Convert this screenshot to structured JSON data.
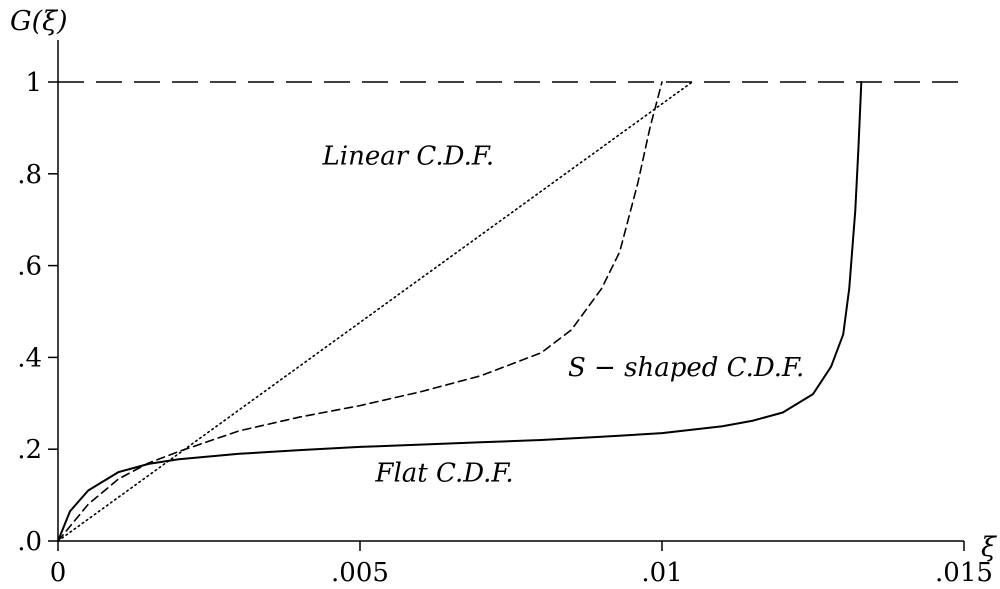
{
  "chart_data": {
    "type": "line",
    "title": "",
    "xlabel": "ξ",
    "ylabel": "G(ξ)",
    "xlim": [
      0,
      0.015
    ],
    "ylim": [
      0,
      1
    ],
    "x_ticks": [
      0,
      0.005,
      0.01,
      0.015
    ],
    "x_tick_labels": [
      "0",
      ".005",
      ".01",
      ".015"
    ],
    "y_ticks": [
      0,
      0.2,
      0.4,
      0.6,
      0.8,
      1
    ],
    "y_tick_labels": [
      ".0",
      ".2",
      ".4",
      ".6",
      ".8",
      "1"
    ],
    "grid": false,
    "legend": "none",
    "reference_line": {
      "y": 1,
      "style": "long-dash"
    },
    "series": [
      {
        "label": "Linear C.D.F.",
        "line_style": "dotted",
        "color": "#000000",
        "x": [
          0,
          0.0105
        ],
        "y": [
          0,
          1
        ]
      },
      {
        "label": "S − shaped C.D.F.",
        "line_style": "dashed",
        "color": "#000000",
        "x": [
          0,
          0.0005,
          0.001,
          0.0015,
          0.002,
          0.003,
          0.004,
          0.005,
          0.006,
          0.007,
          0.008,
          0.0085,
          0.009,
          0.0093,
          0.0096,
          0.0098,
          0.01
        ],
        "y": [
          0,
          0.08,
          0.135,
          0.17,
          0.195,
          0.24,
          0.27,
          0.295,
          0.325,
          0.36,
          0.41,
          0.46,
          0.55,
          0.63,
          0.78,
          0.9,
          1
        ]
      },
      {
        "label": "Flat C.D.F.",
        "line_style": "solid",
        "color": "#000000",
        "x": [
          0,
          0.0002,
          0.0005,
          0.001,
          0.0015,
          0.002,
          0.003,
          0.004,
          0.005,
          0.006,
          0.007,
          0.008,
          0.009,
          0.01,
          0.011,
          0.0115,
          0.012,
          0.0125,
          0.0128,
          0.013,
          0.0131,
          0.0132,
          0.01325,
          0.0133
        ],
        "y": [
          0,
          0.065,
          0.11,
          0.15,
          0.168,
          0.178,
          0.19,
          0.198,
          0.205,
          0.21,
          0.215,
          0.22,
          0.227,
          0.235,
          0.25,
          0.262,
          0.28,
          0.32,
          0.38,
          0.45,
          0.55,
          0.72,
          0.85,
          1
        ]
      }
    ],
    "annotations": [
      {
        "text": "Linear C.D.F.",
        "x": 0.0058,
        "y": 0.82
      },
      {
        "text": "S − shaped C.D.F.",
        "x": 0.0104,
        "y": 0.36
      },
      {
        "text": "Flat C.D.F.",
        "x": 0.0064,
        "y": 0.13
      }
    ]
  }
}
